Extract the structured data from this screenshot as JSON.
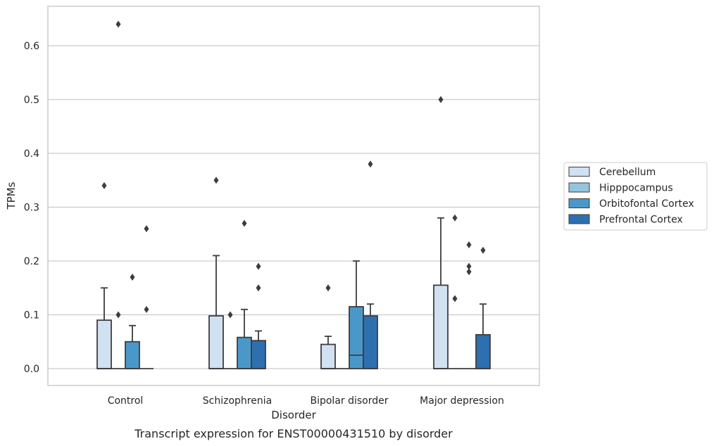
{
  "caption": "Transcript expression for ENST00000431510 by disorder",
  "chart_data": {
    "type": "boxplot",
    "xlabel": "Disorder",
    "ylabel": "TPMs",
    "ylim": [
      -0.03,
      0.67
    ],
    "yticks": [
      0.0,
      0.1,
      0.2,
      0.3,
      0.4,
      0.5,
      0.6
    ],
    "grid": "horizontal",
    "legend_position": "right",
    "categories": [
      "Control",
      "Schizophrenia",
      "Bipolar disorder",
      "Major depression"
    ],
    "series": [
      {
        "name": "Cerebellum",
        "color": "#d0e1f2",
        "boxes": [
          {
            "q1": 0.0,
            "median": 0.0,
            "q3": 0.09,
            "whisker_low": 0.0,
            "whisker_high": 0.15,
            "outliers": [
              0.34
            ]
          },
          {
            "q1": 0.0,
            "median": 0.0,
            "q3": 0.098,
            "whisker_low": 0.0,
            "whisker_high": 0.21,
            "outliers": [
              0.35
            ]
          },
          {
            "q1": 0.0,
            "median": 0.0,
            "q3": 0.045,
            "whisker_low": 0.0,
            "whisker_high": 0.06,
            "outliers": [
              0.15
            ]
          },
          {
            "q1": 0.0,
            "median": 0.0,
            "q3": 0.155,
            "whisker_low": 0.0,
            "whisker_high": 0.28,
            "outliers": [
              0.5
            ]
          }
        ]
      },
      {
        "name": "Hipppocampus",
        "color": "#94c4df",
        "boxes": [
          {
            "q1": 0.0,
            "median": 0.0,
            "q3": 0.0,
            "whisker_low": 0.0,
            "whisker_high": 0.0,
            "outliers": [
              0.1,
              0.64
            ]
          },
          {
            "q1": 0.0,
            "median": 0.0,
            "q3": 0.0,
            "whisker_low": 0.0,
            "whisker_high": 0.0,
            "outliers": [
              0.1
            ]
          },
          {
            "q1": 0.0,
            "median": 0.0,
            "q3": 0.0,
            "whisker_low": 0.0,
            "whisker_high": 0.0,
            "outliers": []
          },
          {
            "q1": 0.0,
            "median": 0.0,
            "q3": 0.0,
            "whisker_low": 0.0,
            "whisker_high": 0.0,
            "outliers": [
              0.13,
              0.28
            ]
          }
        ]
      },
      {
        "name": "Orbitofontal Cortex",
        "color": "#4a98c9",
        "boxes": [
          {
            "q1": 0.0,
            "median": 0.0,
            "q3": 0.05,
            "whisker_low": 0.0,
            "whisker_high": 0.08,
            "outliers": [
              0.17
            ]
          },
          {
            "q1": 0.0,
            "median": 0.0,
            "q3": 0.058,
            "whisker_low": 0.0,
            "whisker_high": 0.11,
            "outliers": [
              0.27
            ]
          },
          {
            "q1": 0.0,
            "median": 0.025,
            "q3": 0.115,
            "whisker_low": 0.0,
            "whisker_high": 0.2,
            "outliers": []
          },
          {
            "q1": 0.0,
            "median": 0.0,
            "q3": 0.0,
            "whisker_low": 0.0,
            "whisker_high": 0.0,
            "outliers": [
              0.18,
              0.19,
              0.23
            ]
          }
        ]
      },
      {
        "name": "Prefrontal Cortex",
        "color": "#2e6fb0",
        "boxes": [
          {
            "q1": 0.0,
            "median": 0.0,
            "q3": 0.0,
            "whisker_low": 0.0,
            "whisker_high": 0.0,
            "outliers": [
              0.11,
              0.26
            ]
          },
          {
            "q1": 0.0,
            "median": 0.0,
            "q3": 0.052,
            "whisker_low": 0.0,
            "whisker_high": 0.07,
            "outliers": [
              0.15,
              0.19
            ]
          },
          {
            "q1": 0.0,
            "median": 0.0,
            "q3": 0.098,
            "whisker_low": 0.0,
            "whisker_high": 0.12,
            "outliers": [
              0.38
            ]
          },
          {
            "q1": 0.0,
            "median": 0.0,
            "q3": 0.063,
            "whisker_low": 0.0,
            "whisker_high": 0.12,
            "outliers": [
              0.22
            ]
          }
        ]
      }
    ]
  }
}
